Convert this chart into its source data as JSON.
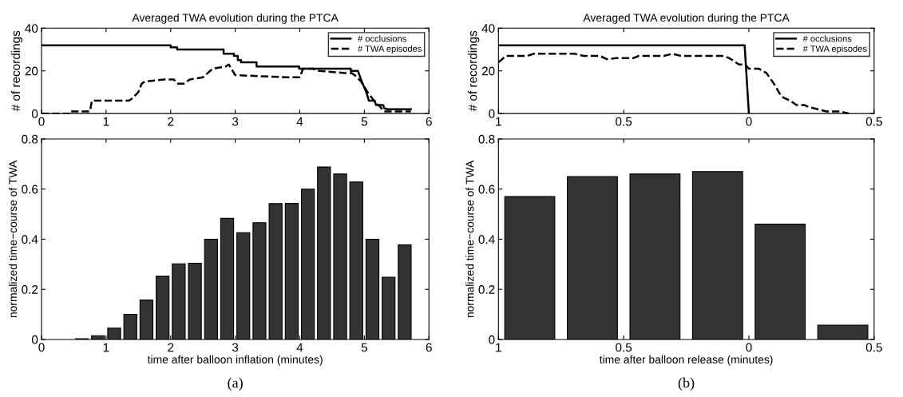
{
  "chart_data": [
    {
      "type": "line",
      "title": "Averaged TWA evolution during the PTCA",
      "ylabel": "# of recordings",
      "xlim": [
        0,
        6
      ],
      "xticks": [
        0,
        1,
        2,
        3,
        4,
        5,
        6
      ],
      "ylim": [
        0,
        40
      ],
      "yticks": [
        0,
        20,
        40
      ],
      "legend": "top right",
      "grid": false,
      "series": [
        {
          "name": "# occlusions",
          "color": "#000000",
          "line_style": "solid",
          "x": [
            0,
            2.0,
            2.0,
            2.1,
            2.1,
            2.82,
            2.82,
            2.98,
            2.98,
            3.04,
            3.04,
            3.09,
            3.09,
            3.33,
            3.33,
            3.99,
            3.99,
            4.79,
            4.79,
            4.9,
            4.96,
            5.03,
            5.07,
            5.16,
            5.18,
            5.29,
            5.31,
            5.36,
            5.72
          ],
          "values": [
            32,
            32,
            31,
            31,
            30,
            30,
            28,
            28,
            27,
            27,
            25,
            25,
            24,
            24,
            22,
            22,
            21,
            21,
            20,
            20,
            15,
            10,
            6,
            6,
            4,
            4,
            2.5,
            2,
            2
          ]
        },
        {
          "name": "# TWA episodes",
          "color": "#000000",
          "line_style": "dashed",
          "x": [
            0,
            0.45,
            0.45,
            0.75,
            0.78,
            1.35,
            1.4,
            1.5,
            1.55,
            1.6,
            1.9,
            2.05,
            2.1,
            2.2,
            2.3,
            2.5,
            2.65,
            2.85,
            2.9,
            3.0,
            3.8,
            4.0,
            4.05,
            4.2,
            4.3,
            4.7,
            4.8,
            4.85,
            4.95,
            5.05,
            5.15,
            5.25,
            5.3,
            5.72
          ],
          "values": [
            0,
            0,
            1,
            1,
            6,
            6,
            7,
            10,
            14,
            15,
            16,
            16,
            14,
            14,
            16,
            17,
            21,
            22,
            23,
            18,
            17,
            17,
            21,
            21,
            20,
            19,
            19,
            18,
            15,
            10,
            6,
            3,
            1,
            1
          ]
        }
      ]
    },
    {
      "type": "line",
      "title": "Averaged TWA evolution during the PTCA",
      "ylabel": "# of recordings",
      "xlim": [
        -1,
        0.5
      ],
      "xticks": [
        {
          "value": -1,
          "label": "1"
        },
        {
          "value": -0.5,
          "label": "0.5"
        },
        {
          "value": 0,
          "label": "0"
        },
        {
          "value": 0.5,
          "label": "0.5"
        }
      ],
      "ylim": [
        0,
        40
      ],
      "yticks": [
        0,
        20,
        40
      ],
      "legend": "top right",
      "grid": false,
      "series": [
        {
          "name": "# occlusions",
          "color": "#000000",
          "line_style": "solid",
          "x": [
            -1,
            -0.017,
            0.0
          ],
          "values": [
            32,
            32,
            0
          ]
        },
        {
          "name": "# TWA episodes",
          "color": "#000000",
          "line_style": "dashed",
          "x": [
            -1,
            -0.97,
            -0.885,
            -0.86,
            -0.695,
            -0.66,
            -0.595,
            -0.567,
            -0.53,
            -0.46,
            -0.44,
            -0.34,
            -0.305,
            -0.27,
            -0.1,
            -0.08,
            -0.065,
            -0.04,
            -0.015,
            0.0,
            0.04,
            0.07,
            0.1,
            0.13,
            0.165,
            0.19,
            0.22,
            0.24,
            0.275,
            0.31,
            0.365,
            0.4
          ],
          "values": [
            24,
            27,
            27,
            28,
            28,
            27,
            27,
            25.5,
            26,
            26,
            27,
            27,
            28,
            27,
            27,
            26,
            25,
            23,
            23,
            21,
            21,
            19,
            14,
            8,
            6,
            4,
            4,
            3,
            2,
            1,
            1,
            0
          ]
        }
      ]
    },
    {
      "type": "bar",
      "xlabel": "time after balloon inflation (minutes)",
      "ylabel": "normalized time−course of TWA",
      "xlim": [
        0,
        6
      ],
      "xticks": [
        0,
        1,
        2,
        3,
        4,
        5,
        6
      ],
      "ylim": [
        0,
        0.8
      ],
      "yticks": [
        0,
        0.2,
        0.4,
        0.6,
        0.8
      ],
      "grid": false,
      "annotations": [
        "(a)"
      ],
      "x": [
        0.625,
        0.875,
        1.125,
        1.375,
        1.625,
        1.875,
        2.125,
        2.375,
        2.625,
        2.875,
        3.125,
        3.375,
        3.625,
        3.875,
        4.125,
        4.375,
        4.625,
        4.875,
        5.125,
        5.375,
        5.625
      ],
      "values": [
        0.003,
        0.015,
        0.045,
        0.1,
        0.157,
        0.252,
        0.302,
        0.304,
        0.4,
        0.483,
        0.426,
        0.466,
        0.542,
        0.543,
        0.6,
        0.688,
        0.66,
        0.628,
        0.4,
        0.248,
        0.377
      ],
      "color": "#333333"
    },
    {
      "type": "bar",
      "xlabel": "time after balloon release (minutes)",
      "ylabel": "normalized time−course of TWA",
      "xlim": [
        -1,
        0.5
      ],
      "xticks": [
        {
          "value": -1,
          "label": "1"
        },
        {
          "value": -0.5,
          "label": "0.5"
        },
        {
          "value": 0,
          "label": "0"
        },
        {
          "value": 0.5,
          "label": "0.5"
        }
      ],
      "ylim": [
        0,
        0.8
      ],
      "yticks": [
        0,
        0.2,
        0.4,
        0.6,
        0.8
      ],
      "grid": false,
      "annotations": [
        "(b)"
      ],
      "x": [
        -0.875,
        -0.625,
        -0.375,
        -0.125,
        0.125,
        0.375
      ],
      "values": [
        0.57,
        0.65,
        0.66,
        0.67,
        0.46,
        0.057
      ],
      "color": "#333333"
    }
  ]
}
